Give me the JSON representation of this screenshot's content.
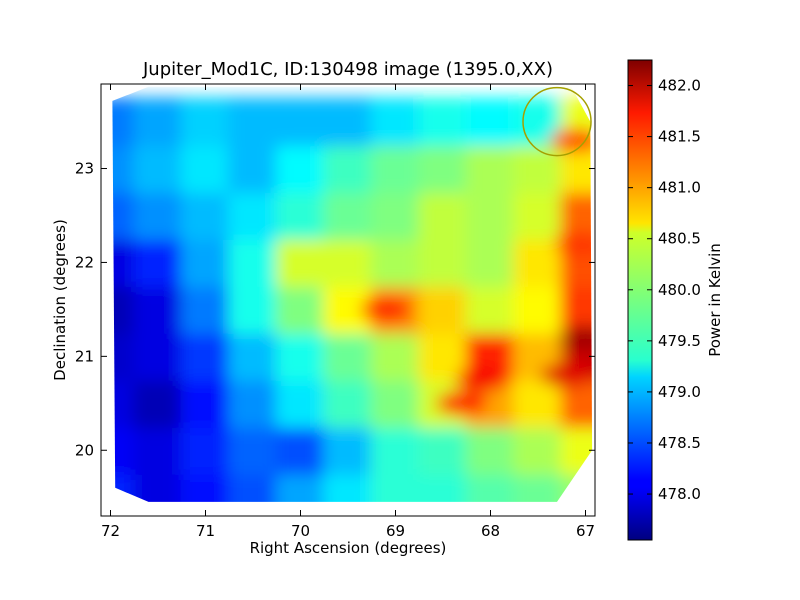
{
  "chart_data": {
    "type": "heatmap",
    "title": "Jupiter_Mod1C, ID:130498 image (1395.0,XX)",
    "xlabel": "Right Ascension (degrees)",
    "ylabel": "Declination (degrees)",
    "colorbar_label": "Power in Kelvin",
    "colormap": "jet",
    "x_inverted": true,
    "xlim": [
      72.1,
      66.9
    ],
    "ylim": [
      19.3,
      23.9
    ],
    "x_ticks": [
      72,
      71,
      70,
      69,
      68,
      67
    ],
    "y_ticks": [
      20,
      21,
      22,
      23
    ],
    "color_range": [
      477.55,
      482.25
    ],
    "colorbar_ticks": [
      "478.0",
      "478.5",
      "479.0",
      "479.5",
      "480.0",
      "480.5",
      "481.0",
      "481.5",
      "482.0"
    ],
    "footprint": [
      [
        71.98,
        23.72
      ],
      [
        71.6,
        23.87
      ],
      [
        67.15,
        23.87
      ],
      [
        66.95,
        23.5
      ],
      [
        66.93,
        20.0
      ],
      [
        67.3,
        19.45
      ],
      [
        71.6,
        19.45
      ],
      [
        71.95,
        19.6
      ]
    ],
    "grid_ra": [
      72.0,
      71.5,
      71.0,
      70.5,
      70.0,
      69.5,
      69.0,
      68.5,
      68.0,
      67.5,
      67.0
    ],
    "grid_dec": [
      19.5,
      20.0,
      20.5,
      21.0,
      21.5,
      22.0,
      22.5,
      23.0,
      23.5
    ],
    "grid_power": [
      [
        478.3,
        478.0,
        478.2,
        478.5,
        478.9,
        479.2,
        479.5,
        479.5,
        479.7,
        479.8,
        480.0
      ],
      [
        478.1,
        478.0,
        478.3,
        478.6,
        478.5,
        479.0,
        479.5,
        479.6,
        479.9,
        480.1,
        480.4
      ],
      [
        478.0,
        477.8,
        478.2,
        478.8,
        479.2,
        479.6,
        479.9,
        480.3,
        480.9,
        480.6,
        481.2
      ],
      [
        477.9,
        478.0,
        478.4,
        479.0,
        479.4,
        479.8,
        480.1,
        480.6,
        481.5,
        480.8,
        481.9
      ],
      [
        477.8,
        478.0,
        478.7,
        479.4,
        479.9,
        480.5,
        481.0,
        480.7,
        480.3,
        480.5,
        481.4
      ],
      [
        478.0,
        478.3,
        478.9,
        479.4,
        480.3,
        480.3,
        480.1,
        480.2,
        480.1,
        480.6,
        481.3
      ],
      [
        478.6,
        478.8,
        479.0,
        479.2,
        479.5,
        479.8,
        479.9,
        480.2,
        480.1,
        480.3,
        481.2
      ],
      [
        478.8,
        479.0,
        479.2,
        479.0,
        479.3,
        479.6,
        479.8,
        479.9,
        480.1,
        480.2,
        480.6
      ],
      [
        478.7,
        478.9,
        479.1,
        479.0,
        479.0,
        479.0,
        479.2,
        479.4,
        479.3,
        479.4,
        480.4
      ]
    ],
    "hotspots": [
      {
        "ra": 67.0,
        "dec": 21.2,
        "power": 482.1
      },
      {
        "ra": 67.2,
        "dec": 20.8,
        "power": 481.8
      },
      {
        "ra": 68.1,
        "dec": 20.75,
        "power": 481.7
      },
      {
        "ra": 68.3,
        "dec": 20.5,
        "power": 481.6
      },
      {
        "ra": 69.1,
        "dec": 21.5,
        "power": 481.5
      },
      {
        "ra": 67.05,
        "dec": 22.2,
        "power": 481.4
      },
      {
        "ra": 67.1,
        "dec": 23.3,
        "power": 481.3
      }
    ],
    "marker": {
      "shape": "circle",
      "ra": 67.3,
      "dec": 23.5,
      "color": "#a5a000"
    }
  }
}
